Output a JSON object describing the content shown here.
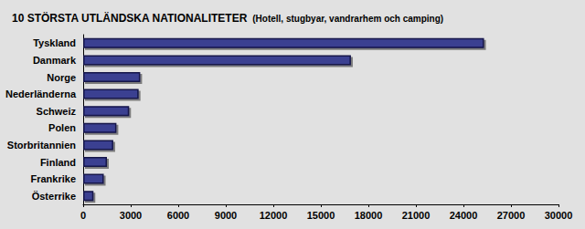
{
  "chart_data": {
    "type": "bar",
    "orientation": "horizontal",
    "title": "10 STÖRSTA UTLÄNDSKA NATIONALITETER",
    "subtitle": "(Hotell, stugbyar, vandrarhem och camping)",
    "categories": [
      "Tyskland",
      "Danmark",
      "Norge",
      "Nederländerna",
      "Schweiz",
      "Polen",
      "Storbritannien",
      "Finland",
      "Frankrike",
      "Österrike"
    ],
    "values": [
      25300,
      16900,
      3600,
      3500,
      2900,
      2100,
      1900,
      1500,
      1300,
      650
    ],
    "color": "#3b3f91",
    "xlim": [
      0,
      30000
    ],
    "xticks": [
      0,
      3000,
      6000,
      9000,
      12000,
      15000,
      18000,
      21000,
      24000,
      27000,
      30000
    ],
    "grid": false
  }
}
